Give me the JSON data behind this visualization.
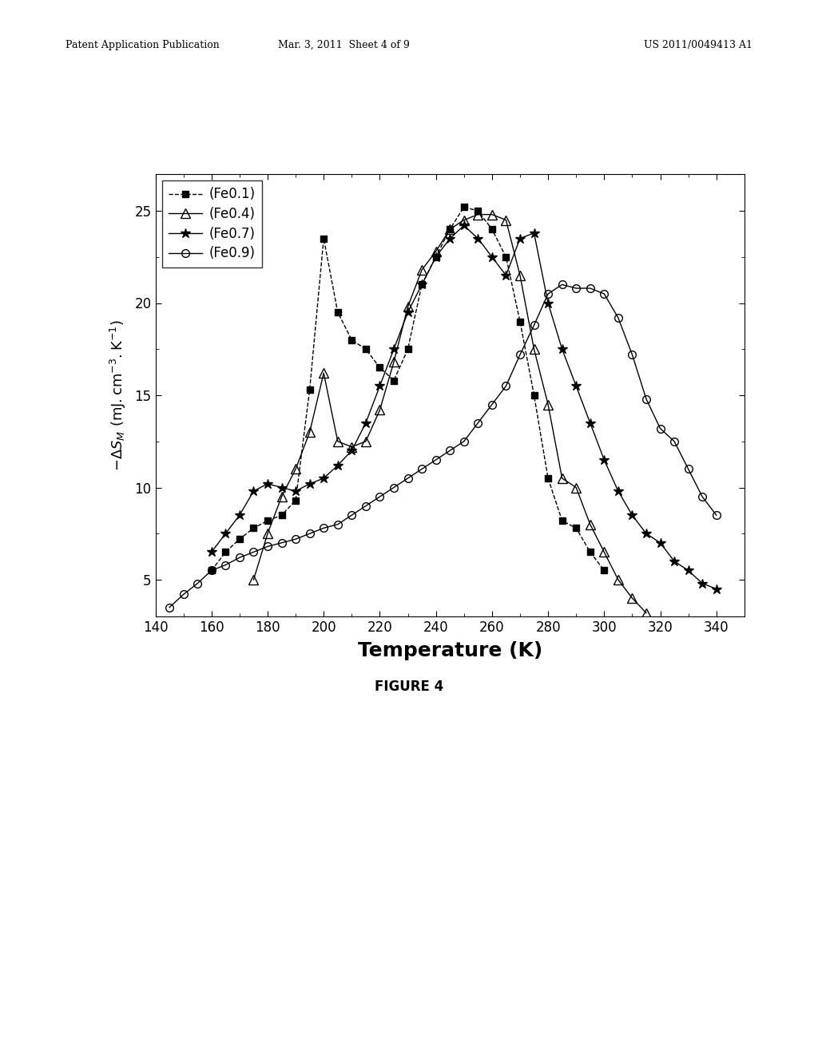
{
  "header_left": "Patent Application Publication",
  "header_mid": "Mar. 3, 2011  Sheet 4 of 9",
  "header_right": "US 2011/0049413 A1",
  "xlabel": "Temperature (K)",
  "figure_caption": "FIGURE 4",
  "xlim": [
    140,
    350
  ],
  "ylim": [
    3,
    27
  ],
  "xticks": [
    140,
    160,
    180,
    200,
    220,
    240,
    260,
    280,
    300,
    320,
    340
  ],
  "yticks": [
    5,
    10,
    15,
    20,
    25
  ],
  "background_color": "#ffffff",
  "series": [
    {
      "label": "(Fe0.1)",
      "marker": "s",
      "marker_fill": "black",
      "linestyle": "--",
      "color": "black",
      "x": [
        160,
        165,
        170,
        175,
        180,
        185,
        190,
        195,
        200,
        205,
        210,
        215,
        220,
        225,
        230,
        235,
        240,
        245,
        250,
        255,
        260,
        265,
        270,
        275,
        280,
        285,
        290,
        295,
        300
      ],
      "y": [
        5.5,
        6.5,
        7.2,
        7.8,
        8.2,
        8.5,
        9.3,
        15.3,
        23.5,
        19.5,
        18.0,
        17.5,
        16.5,
        15.8,
        17.5,
        21.0,
        22.5,
        24.0,
        25.2,
        25.0,
        24.0,
        22.5,
        19.0,
        15.0,
        10.5,
        8.2,
        7.8,
        6.5,
        5.5
      ]
    },
    {
      "label": "(Fe0.4)",
      "marker": "^",
      "marker_fill": "none",
      "linestyle": "-",
      "color": "black",
      "x": [
        175,
        180,
        185,
        190,
        195,
        200,
        205,
        210,
        215,
        220,
        225,
        230,
        235,
        240,
        245,
        250,
        255,
        260,
        265,
        270,
        275,
        280,
        285,
        290,
        295,
        300,
        305,
        310,
        315
      ],
      "y": [
        5.0,
        7.5,
        9.5,
        11.0,
        13.0,
        16.2,
        12.5,
        12.2,
        12.5,
        14.2,
        16.8,
        19.8,
        21.8,
        22.8,
        24.0,
        24.5,
        24.8,
        24.8,
        24.5,
        21.5,
        17.5,
        14.5,
        10.5,
        10.0,
        8.0,
        6.5,
        5.0,
        4.0,
        3.2
      ]
    },
    {
      "label": "(Fe0.7)",
      "marker": "*",
      "marker_fill": "black",
      "linestyle": "-",
      "color": "black",
      "x": [
        160,
        165,
        170,
        175,
        180,
        185,
        190,
        195,
        200,
        205,
        210,
        215,
        220,
        225,
        230,
        235,
        240,
        245,
        250,
        255,
        260,
        265,
        270,
        275,
        280,
        285,
        290,
        295,
        300,
        305,
        310,
        315,
        320,
        325,
        330,
        335,
        340
      ],
      "y": [
        6.5,
        7.5,
        8.5,
        9.8,
        10.2,
        10.0,
        9.8,
        10.2,
        10.5,
        11.2,
        12.0,
        13.5,
        15.5,
        17.5,
        19.5,
        21.0,
        22.5,
        23.5,
        24.2,
        23.5,
        22.5,
        21.5,
        23.5,
        23.8,
        20.0,
        17.5,
        15.5,
        13.5,
        11.5,
        9.8,
        8.5,
        7.5,
        7.0,
        6.0,
        5.5,
        4.8,
        4.5
      ]
    },
    {
      "label": "(Fe0.9)",
      "marker": "o",
      "marker_fill": "none",
      "linestyle": "-",
      "color": "black",
      "x": [
        145,
        150,
        155,
        160,
        165,
        170,
        175,
        180,
        185,
        190,
        195,
        200,
        205,
        210,
        215,
        220,
        225,
        230,
        235,
        240,
        245,
        250,
        255,
        260,
        265,
        270,
        275,
        280,
        285,
        290,
        295,
        300,
        305,
        310,
        315,
        320,
        325,
        330,
        335,
        340
      ],
      "y": [
        3.5,
        4.2,
        4.8,
        5.5,
        5.8,
        6.2,
        6.5,
        6.8,
        7.0,
        7.2,
        7.5,
        7.8,
        8.0,
        8.5,
        9.0,
        9.5,
        10.0,
        10.5,
        11.0,
        11.5,
        12.0,
        12.5,
        13.5,
        14.5,
        15.5,
        17.2,
        18.8,
        20.5,
        21.0,
        20.8,
        20.8,
        20.5,
        19.2,
        17.2,
        14.8,
        13.2,
        12.5,
        11.0,
        9.5,
        8.5
      ]
    }
  ]
}
